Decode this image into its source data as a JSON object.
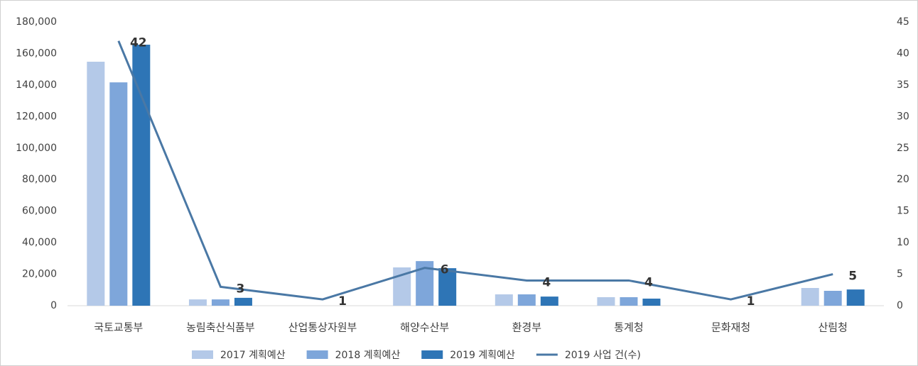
{
  "chart_data": {
    "type": "bar",
    "categories": [
      "국토교통부",
      "농림축산식품부",
      "산업통상자원부",
      "해양수산부",
      "환경부",
      "통계청",
      "문화재청",
      "산림청"
    ],
    "series": [
      {
        "name": "2017 계획예산",
        "color": "#b4c9e8",
        "values": [
          154800,
          4000,
          0,
          24300,
          7200,
          5400,
          0,
          11250
        ]
      },
      {
        "name": "2018 계획예산",
        "color": "#7ea6da",
        "values": [
          141700,
          4000,
          0,
          28300,
          7200,
          5400,
          0,
          9450
        ]
      },
      {
        "name": "2019 계획예산",
        "color": "#2e75b6",
        "values": [
          165600,
          5000,
          0,
          23800,
          5800,
          4500,
          0,
          10300
        ]
      },
      {
        "name": "2019 사업 건(수)",
        "type": "line",
        "axis": "y2",
        "color": "#4a78a5",
        "values": [
          42,
          3,
          1,
          6,
          4,
          4,
          1,
          5
        ]
      }
    ],
    "ylim": [
      0,
      180000
    ],
    "yticks": [
      0,
      {
        "value": 20000,
        "label": "20,000"
      },
      {
        "value": 40000,
        "label": "40,000"
      },
      {
        "value": 60000,
        "label": "60,000"
      },
      {
        "value": 80000,
        "label": "80,000"
      },
      {
        "value": 100000,
        "label": "100,000"
      },
      {
        "value": 120000,
        "label": "120,000"
      },
      {
        "value": 140000,
        "label": "140,000"
      },
      {
        "value": 160000,
        "label": "160,000"
      },
      {
        "value": 180000,
        "label": "180,000"
      }
    ],
    "y2lim": [
      0,
      45
    ],
    "y2ticks": [
      0,
      5,
      10,
      15,
      20,
      25,
      30,
      35,
      40,
      45
    ],
    "grid": false,
    "legend": "bottom"
  }
}
